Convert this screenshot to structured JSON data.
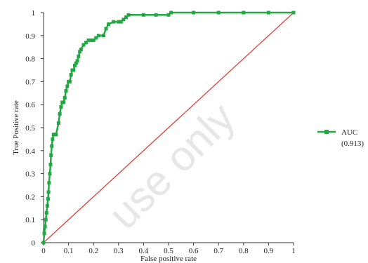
{
  "chart_data": {
    "type": "line",
    "xlabel": "False positive rate",
    "ylabel": "True Positive rate",
    "xlim": [
      0,
      1
    ],
    "ylim": [
      0,
      1
    ],
    "xticks": [
      "0",
      "0.1",
      "0.2",
      "0.3",
      "0.4",
      "0.5",
      "0.6",
      "0.7",
      "0.8",
      "0.9",
      "1"
    ],
    "yticks": [
      "0",
      "0.1",
      "0.2",
      "0.3",
      "0.4",
      "0.5",
      "0.6",
      "0.7",
      "0.8",
      "0.9",
      "1"
    ],
    "grid": false,
    "legend_position": "right",
    "series": [
      {
        "name": "AUC",
        "legend_sublabel": "(0.913)",
        "color": "#22a843",
        "marker": "square",
        "x": [
          0,
          0.003,
          0.006,
          0.009,
          0.012,
          0.015,
          0.018,
          0.02,
          0.022,
          0.025,
          0.028,
          0.03,
          0.033,
          0.036,
          0.04,
          0.045,
          0.05,
          0.06,
          0.065,
          0.07,
          0.075,
          0.08,
          0.085,
          0.09,
          0.095,
          0.1,
          0.105,
          0.11,
          0.115,
          0.12,
          0.125,
          0.13,
          0.135,
          0.14,
          0.145,
          0.15,
          0.16,
          0.17,
          0.18,
          0.19,
          0.2,
          0.21,
          0.22,
          0.24,
          0.25,
          0.26,
          0.28,
          0.3,
          0.31,
          0.32,
          0.33,
          0.34,
          0.4,
          0.45,
          0.5,
          0.51,
          0.6,
          0.7,
          0.8,
          0.9,
          1.0
        ],
        "y": [
          0,
          0.04,
          0.07,
          0.1,
          0.13,
          0.16,
          0.19,
          0.22,
          0.26,
          0.3,
          0.34,
          0.38,
          0.42,
          0.45,
          0.47,
          0.47,
          0.47,
          0.52,
          0.56,
          0.59,
          0.61,
          0.61,
          0.63,
          0.66,
          0.68,
          0.7,
          0.7,
          0.73,
          0.75,
          0.75,
          0.77,
          0.78,
          0.79,
          0.81,
          0.83,
          0.84,
          0.86,
          0.87,
          0.88,
          0.88,
          0.88,
          0.89,
          0.9,
          0.9,
          0.93,
          0.95,
          0.96,
          0.96,
          0.96,
          0.97,
          0.98,
          0.99,
          0.99,
          0.99,
          0.99,
          1.0,
          1.0,
          1.0,
          1.0,
          1.0,
          1.0
        ]
      },
      {
        "name": "",
        "color": "#e0403a",
        "marker": "none",
        "x": [
          0,
          1
        ],
        "y": [
          0,
          1
        ]
      }
    ]
  },
  "watermark_text": "use only"
}
